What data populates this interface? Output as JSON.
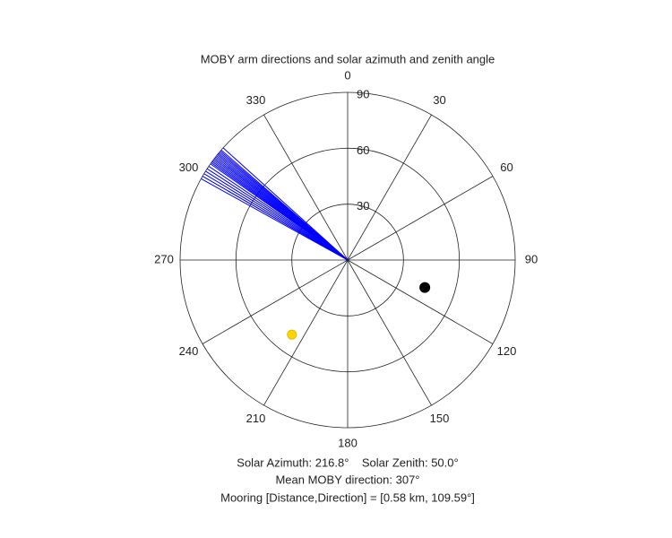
{
  "chart_data": {
    "type": "polar",
    "title": "MOBY arm directions and solar azimuth and zenith angle",
    "rlim": [
      0,
      90
    ],
    "rticks": [
      30,
      60,
      90
    ],
    "thetaticks": [
      0,
      30,
      60,
      90,
      120,
      150,
      180,
      210,
      240,
      270,
      300,
      330
    ],
    "theta_zero": "north",
    "theta_direction": "clockwise",
    "grid": true,
    "arms": {
      "color": "#0000ff",
      "r": 90,
      "directions": [
        299,
        300,
        301,
        302,
        303,
        304,
        305,
        305.5,
        306,
        306.5,
        307,
        307.5,
        308,
        308.5,
        309,
        309.5,
        310,
        310.5,
        311,
        312
      ]
    },
    "sun": {
      "color": "#ffd700",
      "azimuth": 216.8,
      "zenith": 50.0
    },
    "mooring": {
      "color": "#000000",
      "direction": 109.59,
      "r": 44
    },
    "annotations": [
      "Solar Azimuth: 216.8°    Solar Zenith: 50.0°",
      "Mean MOBY direction: 307°",
      "Mooring [Distance,Direction] = [0.58 km, 109.59°]"
    ]
  }
}
